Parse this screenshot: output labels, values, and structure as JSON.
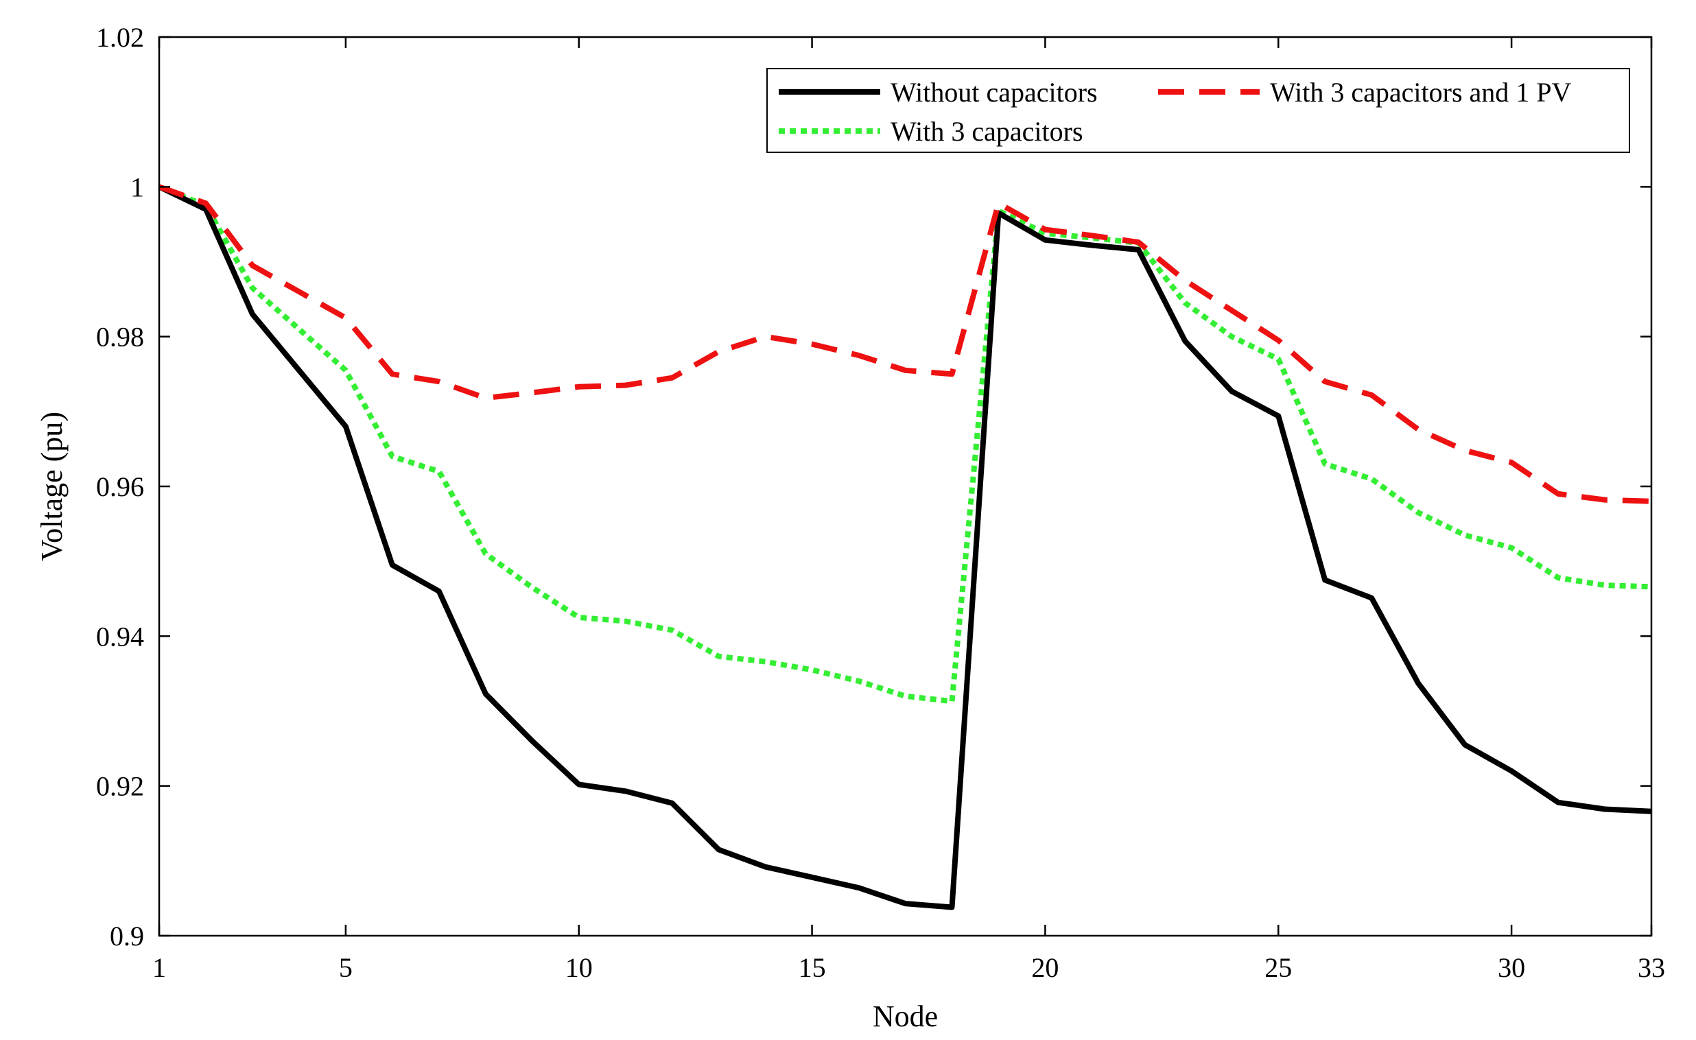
{
  "chart_data": {
    "type": "line",
    "title": "",
    "xlabel": "Node",
    "ylabel": "Voltage (pu)",
    "xlim": [
      1,
      33
    ],
    "ylim": [
      0.9,
      1.02
    ],
    "xticks": [
      1,
      5,
      10,
      15,
      20,
      25,
      30,
      33
    ],
    "xtick_labels": [
      "1",
      "5",
      "10",
      "15",
      "20",
      "25",
      "30",
      "33"
    ],
    "yticks": [
      0.9,
      0.92,
      0.94,
      0.96,
      0.98,
      1.0,
      1.02
    ],
    "ytick_labels": [
      "0.9",
      "0.92",
      "0.94",
      "0.96",
      "0.98",
      "1",
      "1.02"
    ],
    "grid": false,
    "legend_position": "top-right",
    "series": [
      {
        "name": "Without capacitors",
        "color": "#000000",
        "style": "solid",
        "x": [
          1,
          2,
          3,
          4,
          5,
          6,
          7,
          8,
          9,
          10,
          11,
          12,
          13,
          14,
          15,
          16,
          17,
          18,
          19,
          20,
          21,
          22,
          23,
          24,
          25,
          26,
          27,
          28,
          29,
          30,
          31,
          32,
          33
        ],
        "values": [
          1.0,
          0.997,
          0.983,
          0.9755,
          0.968,
          0.9495,
          0.946,
          0.9323,
          0.926,
          0.9202,
          0.9193,
          0.9177,
          0.9115,
          0.9092,
          0.9078,
          0.9064,
          0.9043,
          0.9038,
          0.9965,
          0.9929,
          0.9922,
          0.9916,
          0.9794,
          0.9727,
          0.9694,
          0.9475,
          0.9451,
          0.9337,
          0.9255,
          0.922,
          0.9178,
          0.9169,
          0.9166
        ]
      },
      {
        "name": "With 3 capacitors",
        "color": "#33ee33",
        "style": "dotted",
        "x": [
          1,
          2,
          3,
          4,
          5,
          6,
          7,
          8,
          9,
          10,
          11,
          12,
          13,
          14,
          15,
          16,
          17,
          18,
          19,
          20,
          21,
          22,
          23,
          24,
          25,
          26,
          27,
          28,
          29,
          30,
          31,
          32,
          33
        ],
        "values": [
          1.0,
          0.9975,
          0.9865,
          0.981,
          0.9755,
          0.964,
          0.962,
          0.951,
          0.9465,
          0.9425,
          0.942,
          0.9408,
          0.9373,
          0.9366,
          0.9355,
          0.934,
          0.932,
          0.9313,
          0.9968,
          0.9938,
          0.9932,
          0.9925,
          0.9845,
          0.98,
          0.977,
          0.963,
          0.961,
          0.9565,
          0.9535,
          0.9518,
          0.9478,
          0.9468,
          0.9466
        ]
      },
      {
        "name": "With 3 capacitors and 1 PV",
        "color": "#ee1111",
        "style": "dashed",
        "x": [
          1,
          2,
          3,
          4,
          5,
          6,
          7,
          8,
          9,
          10,
          11,
          12,
          13,
          14,
          15,
          16,
          17,
          18,
          19,
          20,
          21,
          22,
          23,
          24,
          25,
          26,
          27,
          28,
          29,
          30,
          31,
          32,
          33
        ],
        "values": [
          1.0,
          0.9978,
          0.9895,
          0.986,
          0.9825,
          0.975,
          0.974,
          0.9718,
          0.9725,
          0.9733,
          0.9735,
          0.9745,
          0.978,
          0.98,
          0.979,
          0.9775,
          0.9755,
          0.975,
          0.9978,
          0.9943,
          0.9935,
          0.9926,
          0.9875,
          0.9835,
          0.9795,
          0.974,
          0.9722,
          0.9676,
          0.9648,
          0.9632,
          0.959,
          0.9582,
          0.958
        ]
      }
    ]
  }
}
